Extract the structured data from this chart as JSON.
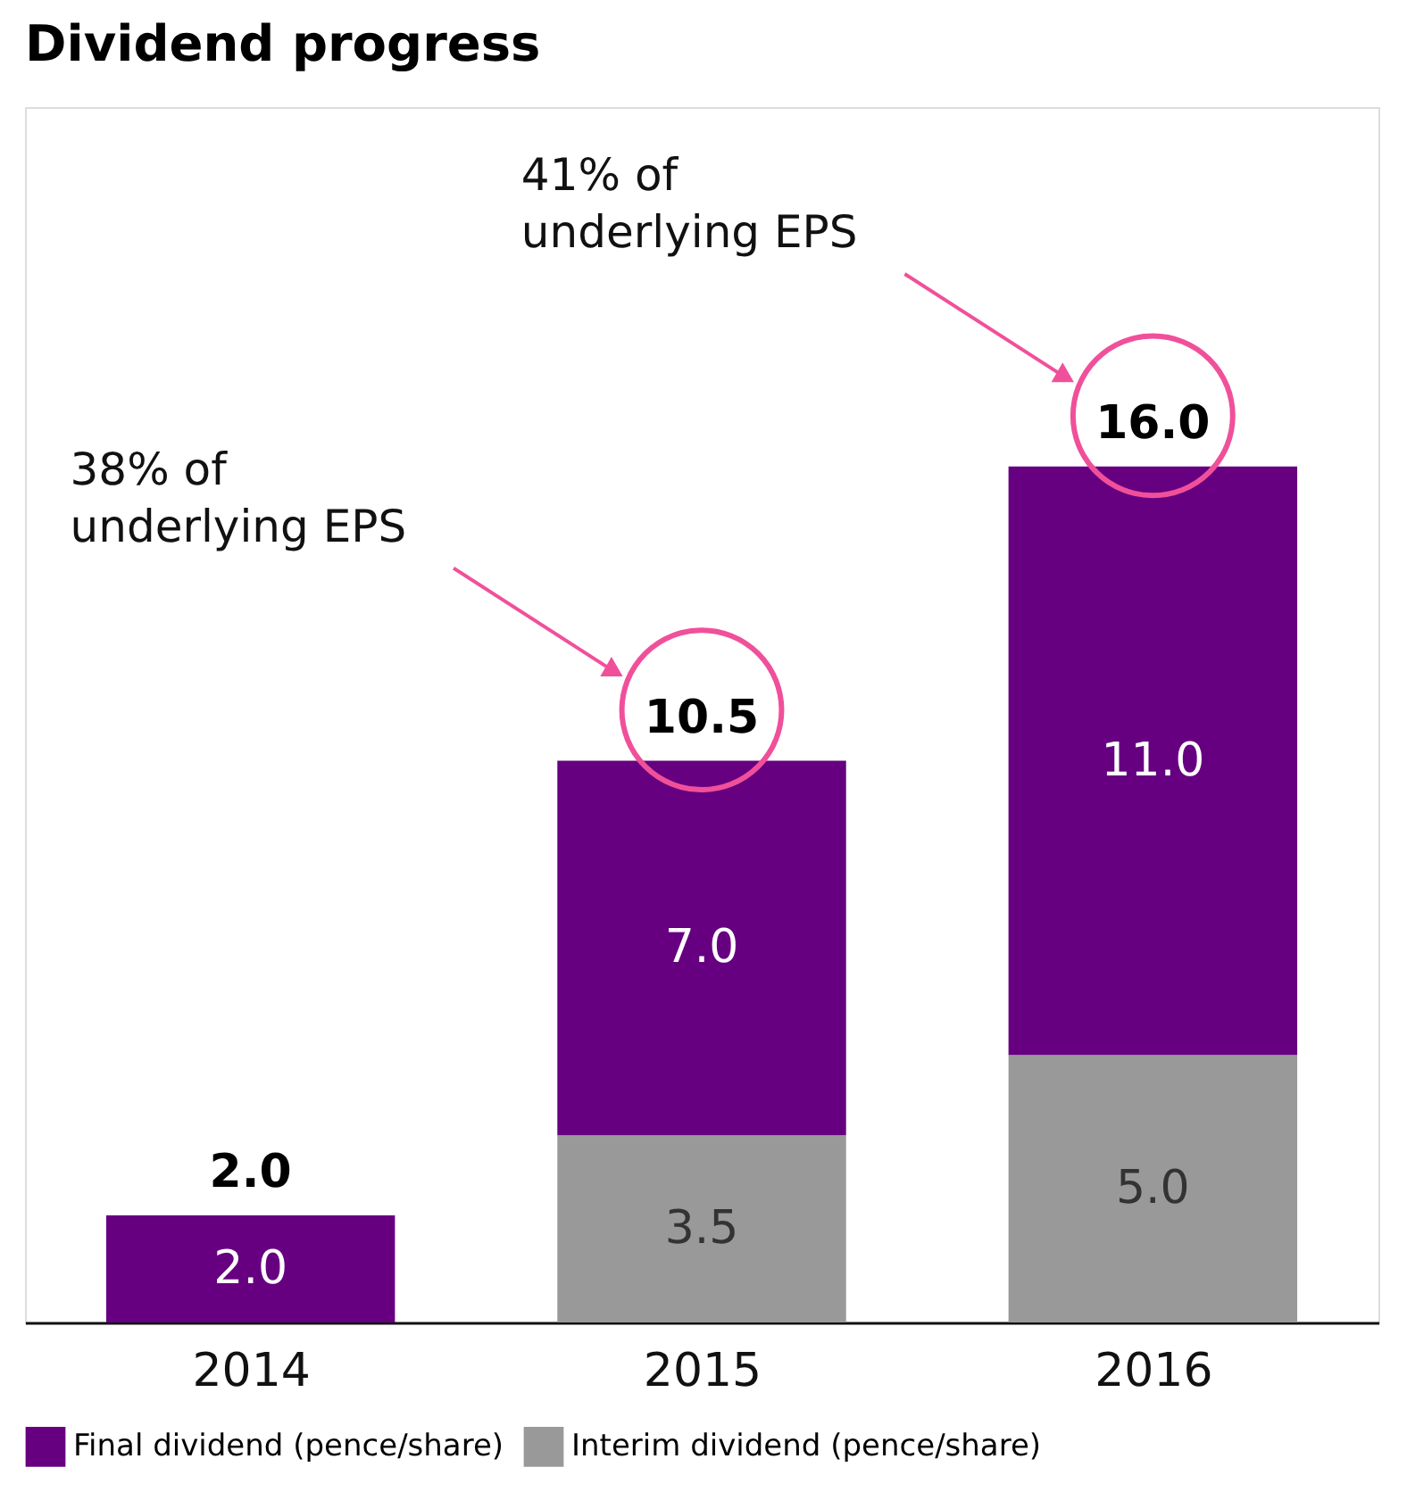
{
  "chart_data": {
    "type": "bar",
    "title": "Dividend progress",
    "stacked": true,
    "categories": [
      "2014",
      "2015",
      "2016"
    ],
    "series": [
      {
        "name": "Interim dividend (pence/share)",
        "color": "#999999",
        "values": [
          null,
          3.5,
          5.0
        ],
        "value_labels": [
          null,
          "3.5",
          "5.0"
        ]
      },
      {
        "name": "Final dividend (pence/share)",
        "color": "#660080",
        "values": [
          2.0,
          7.0,
          11.0
        ],
        "value_labels": [
          "2.0",
          "7.0",
          "11.0"
        ]
      }
    ],
    "totals": [
      "2.0",
      "10.5",
      "16.0"
    ],
    "annotations": [
      "38% of\nunderlying EPS",
      "41% of\nunderlying EPS"
    ],
    "legend": "bottom",
    "grid": false
  }
}
